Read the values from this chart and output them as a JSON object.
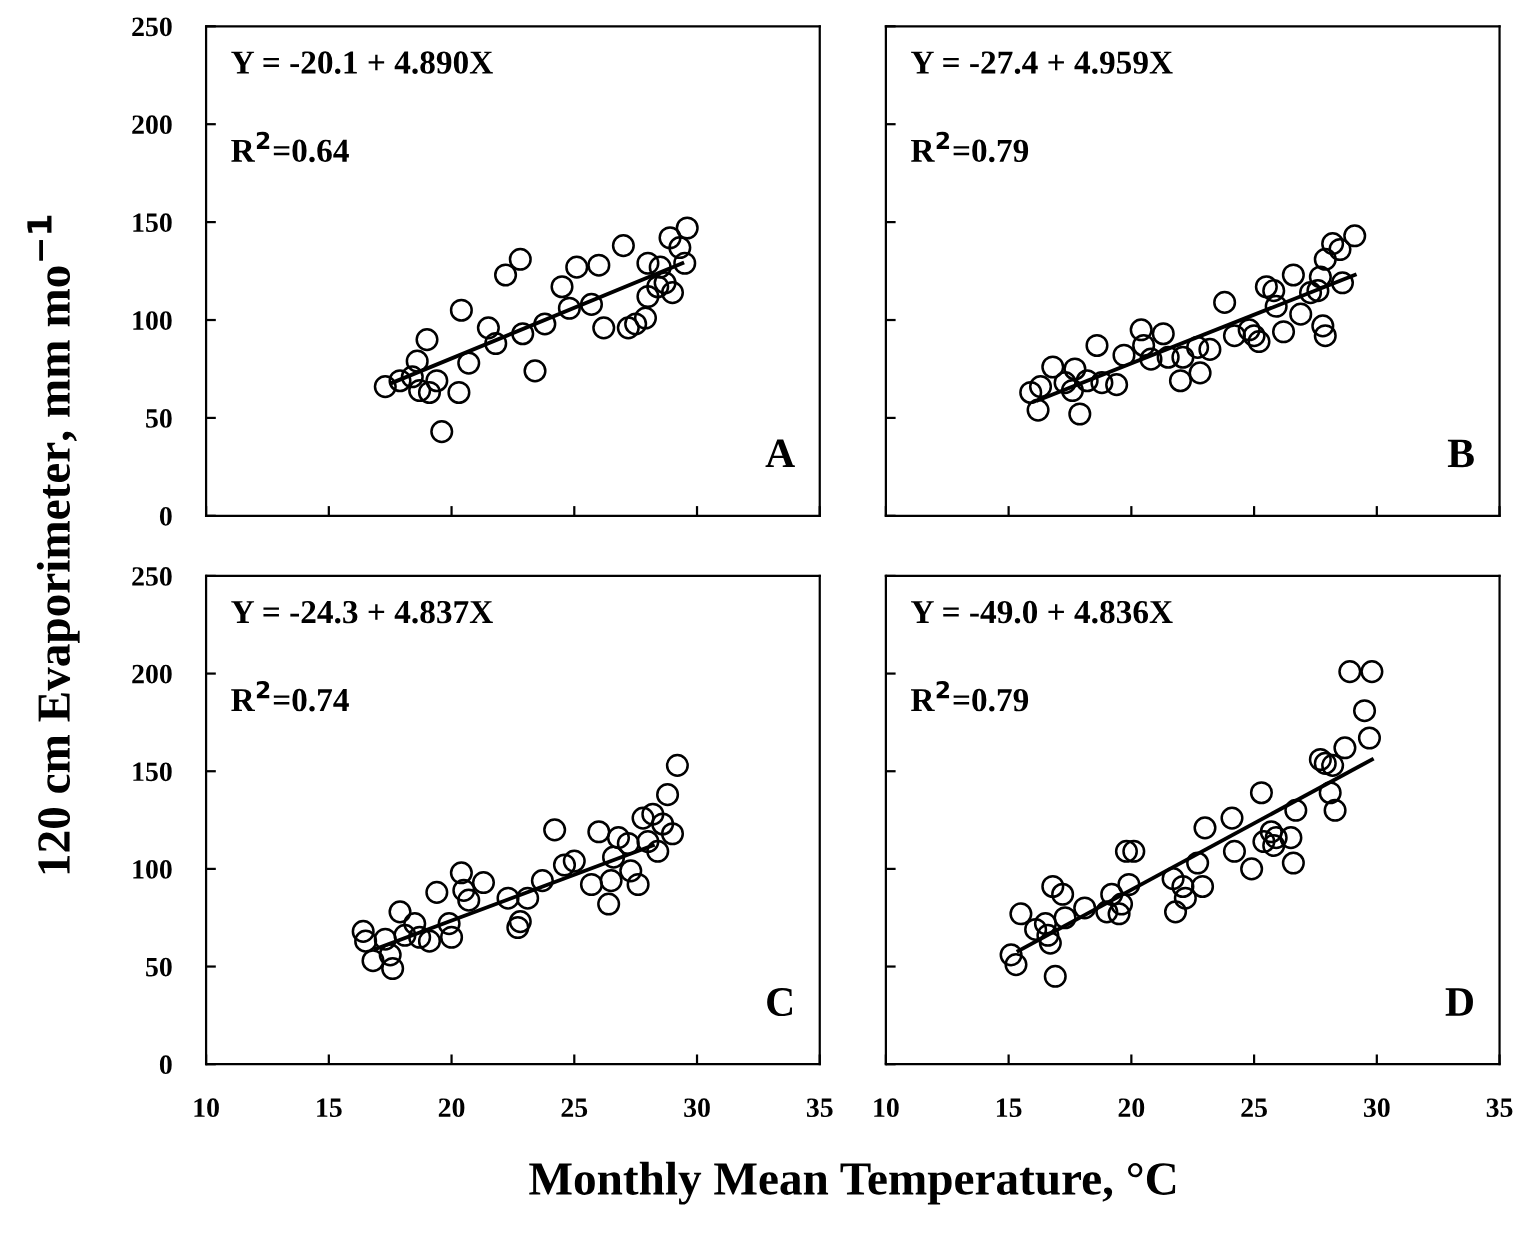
{
  "chart_data": [
    {
      "type": "scatter",
      "ylabel": "120 cm Evaporimeter, mm mo$^{−1}$",
      "xlim": [
        10,
        35
      ],
      "ylim": [
        0,
        250
      ],
      "xticks": [
        10,
        15,
        20,
        25,
        30,
        35
      ],
      "yticks": [
        0,
        50,
        100,
        150,
        200,
        250
      ],
      "tick_labels": "y",
      "grid": false,
      "legend": false,
      "annotations": [
        "Y = -20.1 + 4.890X",
        "R$^{2}$=0.64",
        "A"
      ],
      "series": [
        {
          "color": "#000000",
          "marker": "circle",
          "x": [
            17.3,
            17.9,
            18.4,
            18.7,
            19.1,
            18.6,
            19.0,
            19.4,
            19.6,
            20.3,
            20.4,
            20.7,
            21.5,
            21.8,
            22.2,
            22.8,
            22.9,
            23.4,
            23.8,
            24.5,
            24.8,
            25.1,
            25.7,
            26.0,
            26.2,
            27.0,
            27.2,
            27.5,
            27.9,
            28.0,
            28.0,
            28.5,
            28.7,
            28.9,
            29.0,
            29.3,
            29.5,
            29.6,
            28.4
          ],
          "values": [
            66,
            69,
            71,
            64,
            63,
            79,
            90,
            69,
            43,
            63,
            105,
            78,
            96,
            88,
            123,
            131,
            93,
            74,
            98,
            117,
            106,
            127,
            108,
            128,
            96,
            138,
            96,
            98,
            101,
            129,
            112,
            127,
            119,
            142,
            114,
            137,
            129,
            147,
            117
          ]
        },
        {
          "type": "line",
          "color": "#000000",
          "marker": "none",
          "x": [
            17.6,
            29.4
          ],
          "values": [
            68,
            129
          ]
        }
      ]
    },
    {
      "type": "scatter",
      "xlim": [
        10,
        35
      ],
      "ylim": [
        0,
        250
      ],
      "xticks": [
        10,
        15,
        20,
        25,
        30,
        35
      ],
      "yticks": [
        0,
        50,
        100,
        150,
        200,
        250
      ],
      "tick_labels": false,
      "grid": false,
      "legend": false,
      "annotations": [
        "Y = -27.4 + 4.959X",
        "R$^{2}$=0.79",
        "B"
      ],
      "series": [
        {
          "color": "#000000",
          "marker": "circle",
          "x": [
            15.9,
            16.2,
            16.3,
            16.8,
            17.3,
            17.7,
            17.9,
            17.6,
            18.2,
            18.8,
            18.6,
            19.4,
            19.7,
            20.4,
            20.5,
            20.8,
            21.3,
            21.5,
            22.0,
            22.1,
            22.7,
            22.8,
            23.2,
            23.8,
            24.2,
            24.8,
            25.0,
            25.2,
            25.5,
            25.8,
            25.9,
            26.2,
            26.6,
            26.9,
            27.3,
            27.7,
            27.6,
            27.8,
            27.9,
            27.9,
            28.2,
            28.5,
            28.6,
            29.1
          ],
          "values": [
            63,
            54,
            66,
            76,
            68,
            75,
            52,
            64,
            69,
            68,
            87,
            67,
            82,
            95,
            87,
            80,
            93,
            81,
            69,
            81,
            86,
            73,
            85,
            109,
            92,
            95,
            92,
            89,
            117,
            115,
            107,
            94,
            123,
            103,
            114,
            122,
            115,
            97,
            92,
            131,
            139,
            136,
            119,
            143
          ]
        },
        {
          "type": "line",
          "color": "#000000",
          "marker": "none",
          "x": [
            16.2,
            29.1
          ],
          "values": [
            59,
            123
          ]
        }
      ]
    },
    {
      "type": "scatter",
      "xlabel": "Monthly Mean Temperature, °C",
      "xlim": [
        10,
        35
      ],
      "ylim": [
        0,
        250
      ],
      "xticks": [
        10,
        15,
        20,
        25,
        30,
        35
      ],
      "yticks": [
        0,
        50,
        100,
        150,
        200,
        250
      ],
      "grid": false,
      "legend": false,
      "annotations": [
        "Y = -24.3 + 4.837X",
        "R$^{2}$=0.74",
        "C"
      ],
      "series": [
        {
          "color": "#000000",
          "marker": "circle",
          "x": [
            16.4,
            16.5,
            16.8,
            17.3,
            17.5,
            17.6,
            17.9,
            18.1,
            18.5,
            18.7,
            19.1,
            19.4,
            19.9,
            20.0,
            20.4,
            20.5,
            20.7,
            21.3,
            22.3,
            22.7,
            22.8,
            23.1,
            23.7,
            24.2,
            24.6,
            25.0,
            25.7,
            26.0,
            26.4,
            26.5,
            26.6,
            26.8,
            27.2,
            27.3,
            27.6,
            27.8,
            28.0,
            28.2,
            28.4,
            28.6,
            28.8,
            29.0,
            29.2
          ],
          "values": [
            68,
            63,
            53,
            64,
            56,
            49,
            78,
            66,
            72,
            65,
            63,
            88,
            72,
            65,
            98,
            89,
            84,
            93,
            85,
            70,
            73,
            85,
            94,
            120,
            102,
            104,
            92,
            119,
            82,
            94,
            106,
            116,
            113,
            99,
            92,
            126,
            114,
            128,
            109,
            123,
            138,
            118,
            153
          ]
        },
        {
          "type": "line",
          "color": "#000000",
          "marker": "none",
          "x": [
            16.9,
            28.2
          ],
          "values": [
            59,
            112
          ]
        }
      ]
    },
    {
      "type": "scatter",
      "xlim": [
        10,
        35
      ],
      "ylim": [
        0,
        250
      ],
      "xticks": [
        10,
        15,
        20,
        25,
        30,
        35
      ],
      "yticks": [
        0,
        50,
        100,
        150,
        200,
        250
      ],
      "tick_labels": "x",
      "grid": false,
      "legend": false,
      "annotations": [
        "Y = -49.0 + 4.836X",
        "R$^{2}$=0.79",
        "D"
      ],
      "series": [
        {
          "color": "#000000",
          "marker": "circle",
          "x": [
            15.1,
            15.3,
            15.5,
            16.1,
            16.5,
            16.6,
            16.7,
            16.9,
            16.8,
            17.2,
            17.3,
            18.1,
            19.0,
            19.2,
            19.5,
            19.6,
            19.8,
            20.1,
            19.9,
            21.7,
            21.8,
            22.1,
            22.2,
            22.7,
            22.9,
            23.0,
            24.1,
            24.2,
            24.9,
            25.3,
            25.4,
            25.7,
            25.8,
            25.9,
            26.5,
            26.6,
            26.7,
            27.7,
            27.9,
            28.1,
            28.2,
            28.3,
            28.7,
            28.9,
            29.5,
            29.7,
            29.8
          ],
          "values": [
            56,
            51,
            77,
            69,
            72,
            66,
            62,
            45,
            91,
            87,
            75,
            80,
            78,
            87,
            77,
            82,
            109,
            109,
            92,
            95,
            78,
            91,
            85,
            103,
            91,
            121,
            126,
            109,
            100,
            139,
            114,
            119,
            112,
            116,
            116,
            103,
            130,
            156,
            154,
            139,
            153,
            130,
            162,
            201,
            181,
            167,
            201
          ]
        },
        {
          "type": "line",
          "color": "#000000",
          "marker": "none",
          "x": [
            15.4,
            29.8
          ],
          "values": [
            58,
            156
          ]
        }
      ]
    }
  ]
}
